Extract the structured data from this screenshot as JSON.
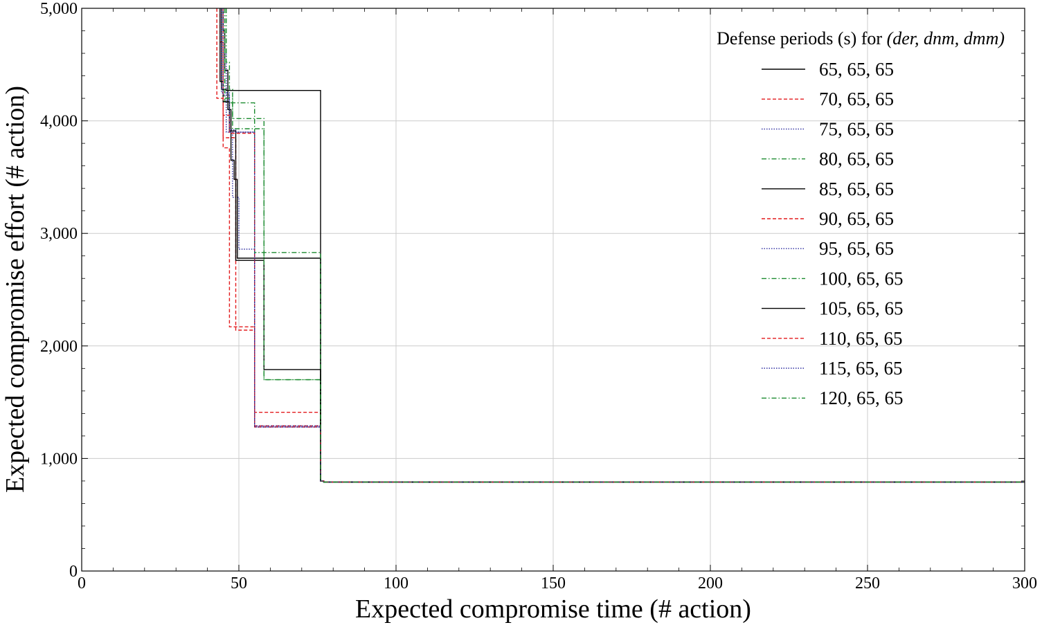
{
  "chart_data": {
    "type": "line",
    "title": "",
    "xlabel": "Expected compromise time (# action)",
    "ylabel": "Expected compromise effort (# action)",
    "xlim": [
      0,
      300
    ],
    "ylim": [
      0,
      5000
    ],
    "xticks": [
      0,
      50,
      100,
      150,
      200,
      250,
      300
    ],
    "yticks": [
      0,
      1000,
      2000,
      3000,
      4000,
      5000
    ],
    "xtick_labels": [
      "0",
      "50",
      "100",
      "150",
      "200",
      "250",
      "300"
    ],
    "ytick_labels": [
      "0",
      "1,000",
      "2,000",
      "3,000",
      "4,000",
      "5,000"
    ],
    "grid": true,
    "legend_title_prefix": "Defense periods (s) for ",
    "legend_title_math": "(der, dnm, dmm)",
    "legend_position": "top-right",
    "series": [
      {
        "name": "65, 65, 65",
        "color": "#000000",
        "style": "solid",
        "x": [
          45,
          45,
          45.5,
          45.5,
          46.5,
          46.5,
          47.5,
          47.5,
          48.5,
          48.5,
          49.5,
          49.5,
          76,
          76,
          77,
          77,
          300
        ],
        "y": [
          5000,
          4800,
          4800,
          4450,
          4450,
          4100,
          4100,
          3650,
          3650,
          3480,
          3480,
          2780,
          2780,
          800,
          800,
          790,
          790
        ]
      },
      {
        "name": "70, 65, 65",
        "color": "#e31a1c",
        "style": "dashed",
        "x": [
          44,
          44,
          45,
          45,
          46,
          46,
          47,
          47,
          55,
          55,
          76,
          76,
          77,
          77,
          300
        ],
        "y": [
          5000,
          4700,
          4700,
          3760,
          3760,
          3760,
          3760,
          2170,
          2170,
          1410,
          1410,
          800,
          800,
          790,
          790
        ]
      },
      {
        "name": "75, 65, 65",
        "color": "#2b2b9f",
        "style": "dotted",
        "x": [
          45,
          45,
          46,
          46,
          48,
          48,
          50,
          50,
          55,
          55,
          76,
          76,
          77,
          77,
          300
        ],
        "y": [
          5000,
          4600,
          4600,
          3900,
          3900,
          3320,
          3320,
          2860,
          2860,
          1280,
          1280,
          800,
          800,
          790,
          790
        ]
      },
      {
        "name": "80, 65, 65",
        "color": "#1a8a2e",
        "style": "dashdot",
        "x": [
          46,
          46,
          47,
          47,
          48,
          48,
          50,
          50,
          58,
          58,
          76,
          76,
          77,
          77,
          300
        ],
        "y": [
          5000,
          4520,
          4520,
          4280,
          4280,
          4020,
          4020,
          4020,
          4020,
          1700,
          1700,
          800,
          800,
          790,
          790
        ]
      },
      {
        "name": "85, 65, 65",
        "color": "#000000",
        "style": "solid",
        "x": [
          44.5,
          44.5,
          46,
          46,
          48,
          48,
          76,
          76,
          77,
          77,
          300
        ],
        "y": [
          5000,
          4280,
          4280,
          4270,
          4270,
          4270,
          4270,
          800,
          800,
          790,
          790
        ]
      },
      {
        "name": "90, 65, 65",
        "color": "#e31a1c",
        "style": "dashed",
        "x": [
          43,
          43,
          45,
          45,
          47,
          47,
          49,
          49,
          55,
          55,
          76,
          76,
          77,
          77,
          300
        ],
        "y": [
          5000,
          4200,
          4200,
          3850,
          3850,
          3850,
          3850,
          2140,
          2140,
          1280,
          1280,
          800,
          800,
          790,
          790
        ]
      },
      {
        "name": "95, 65, 65",
        "color": "#2b2b9f",
        "style": "dotted",
        "x": [
          44.5,
          44.5,
          47,
          47,
          49,
          49,
          55,
          55,
          76,
          76,
          77,
          77,
          300
        ],
        "y": [
          5000,
          4250,
          4250,
          3920,
          3920,
          3900,
          3900,
          1280,
          1280,
          800,
          800,
          790,
          790
        ]
      },
      {
        "name": "100, 65, 65",
        "color": "#1a8a2e",
        "style": "dashdot",
        "x": [
          45.5,
          45.5,
          47,
          47,
          55,
          55,
          58,
          58,
          76,
          76,
          77,
          77,
          300
        ],
        "y": [
          5000,
          4170,
          4170,
          4160,
          4160,
          2830,
          2830,
          2830,
          2830,
          800,
          800,
          790,
          790
        ]
      },
      {
        "name": "105, 65, 65",
        "color": "#000000",
        "style": "solid",
        "x": [
          44,
          44,
          45,
          45,
          47,
          47,
          49,
          49,
          58,
          58,
          76,
          76,
          77,
          77,
          300
        ],
        "y": [
          5000,
          4350,
          4350,
          4170,
          4170,
          3910,
          3910,
          2760,
          2760,
          1790,
          1790,
          800,
          800,
          790,
          790
        ]
      },
      {
        "name": "110, 65, 65",
        "color": "#e31a1c",
        "style": "dashed",
        "x": [
          45,
          45,
          47,
          47,
          55,
          55,
          76,
          76,
          77,
          77,
          300
        ],
        "y": [
          5000,
          4050,
          4050,
          3890,
          3890,
          1290,
          1290,
          800,
          800,
          790,
          790
        ]
      },
      {
        "name": "115, 65, 65",
        "color": "#2b2b9f",
        "style": "dotted",
        "x": [
          45,
          45,
          47,
          47,
          55,
          55,
          76,
          76,
          77,
          77,
          300
        ],
        "y": [
          5000,
          4230,
          4230,
          3900,
          3900,
          1290,
          1290,
          800,
          800,
          790,
          790
        ]
      },
      {
        "name": "120, 65, 65",
        "color": "#1a8a2e",
        "style": "dashdot",
        "x": [
          45.5,
          45.5,
          48,
          48,
          55,
          55,
          58,
          58,
          76,
          76,
          77,
          77,
          300
        ],
        "y": [
          5000,
          4200,
          4200,
          3930,
          3930,
          3930,
          3930,
          1700,
          1700,
          800,
          800,
          790,
          790
        ]
      }
    ]
  }
}
